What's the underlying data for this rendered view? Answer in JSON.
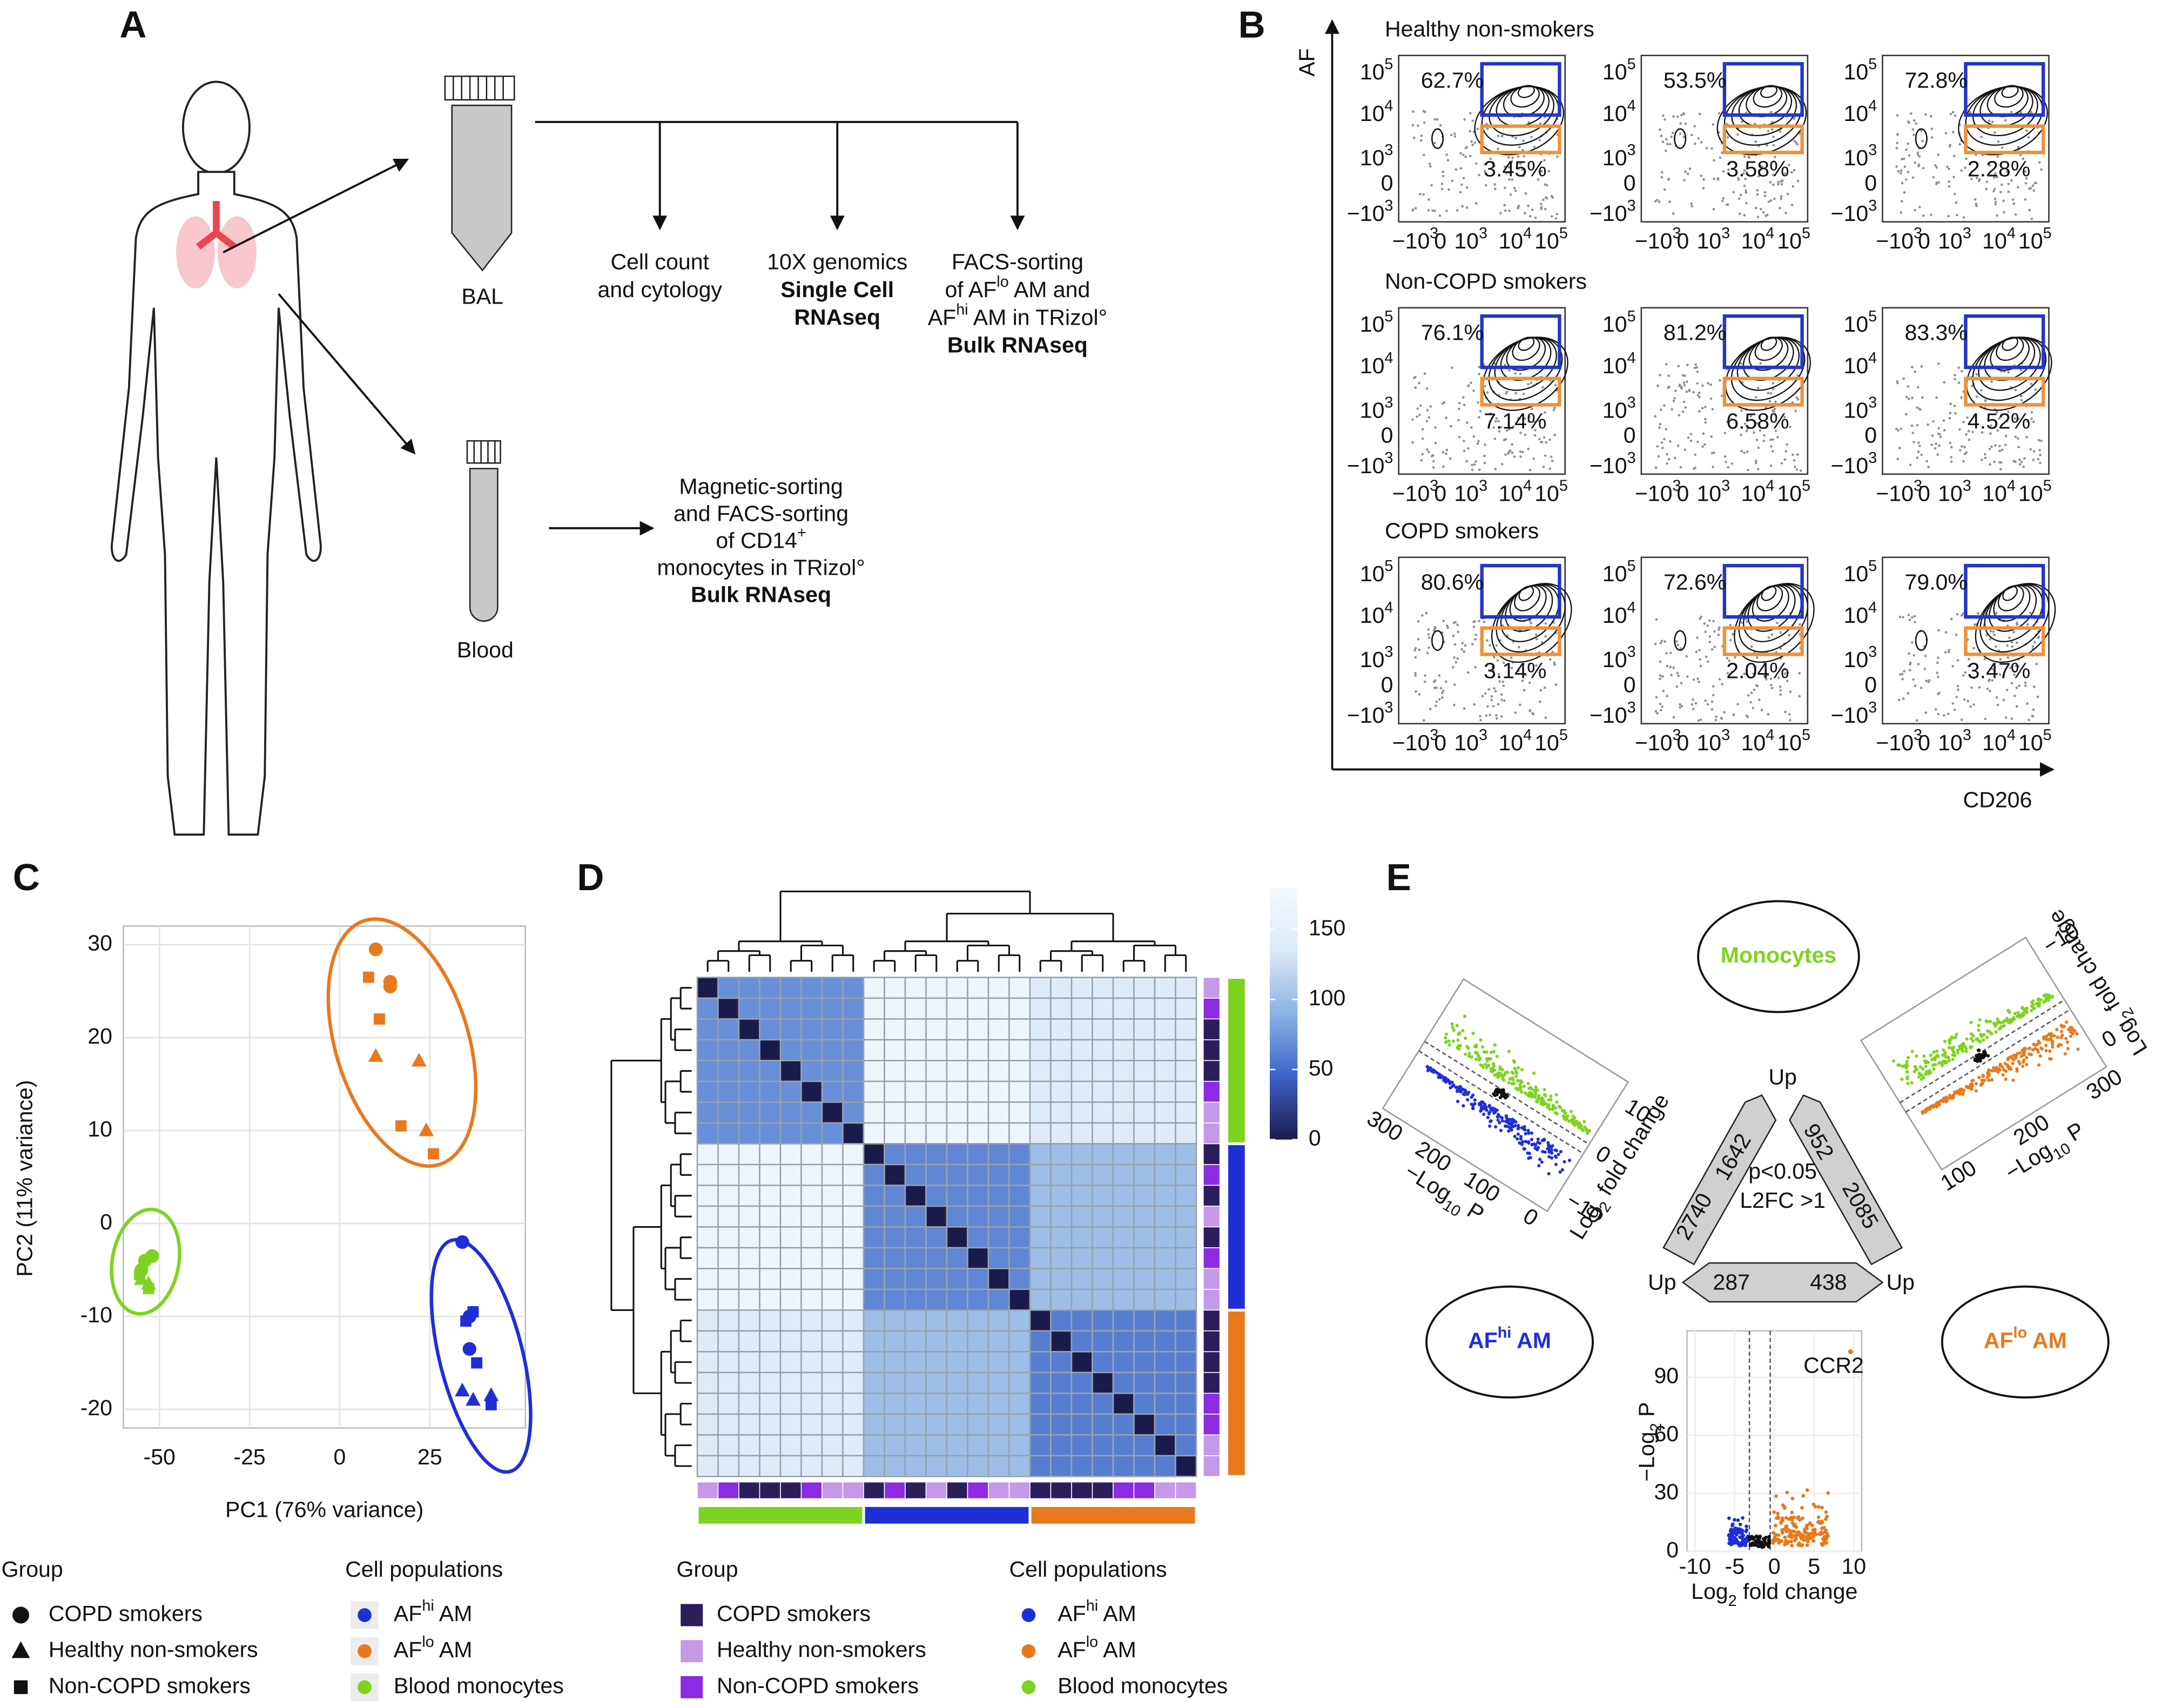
{
  "panel_a": {
    "label": "A",
    "bal": "BAL",
    "blood": "Blood",
    "cell_count": [
      "Cell count",
      "and cytology"
    ],
    "single_cell": [
      "10X genomics",
      "Single Cell",
      "RNAseq"
    ],
    "facs_bal": [
      "FACS-sorting",
      {
        "text": "of AF",
        "sup": "lo",
        "rest": " AM and"
      },
      {
        "text": "AF",
        "sup": "hi",
        "rest": " AM in TRizol°"
      },
      "Bulk RNAseq"
    ],
    "facs_blood": [
      "Magnetic-sorting",
      "and FACS-sorting",
      {
        "text": "of CD14",
        "sup": "+"
      },
      "monocytes in TRizol°",
      "Bulk RNAseq"
    ]
  },
  "panel_b": {
    "label": "B",
    "y_axis": "AF",
    "x_axis": "CD206",
    "ticks": [
      {
        "base": "−10",
        "exp": "3"
      },
      {
        "base": "0"
      },
      {
        "base": "10",
        "exp": "3"
      },
      {
        "base": "10",
        "exp": "4"
      },
      {
        "base": "10",
        "exp": "5"
      }
    ],
    "rows": [
      {
        "title": "Healthy non-smokers",
        "plots": [
          {
            "upper": "62.7%",
            "lower": "3.45%"
          },
          {
            "upper": "53.5%",
            "lower": "3.58%"
          },
          {
            "upper": "72.8%",
            "lower": "2.28%"
          }
        ]
      },
      {
        "title": "Non-COPD smokers",
        "plots": [
          {
            "upper": "76.1%",
            "lower": "7.14%"
          },
          {
            "upper": "81.2%",
            "lower": "6.58%"
          },
          {
            "upper": "83.3%",
            "lower": "4.52%"
          }
        ]
      },
      {
        "title": "COPD smokers",
        "plots": [
          {
            "upper": "80.6%",
            "lower": "3.14%"
          },
          {
            "upper": "72.6%",
            "lower": "2.04%"
          },
          {
            "upper": "79.0%",
            "lower": "3.47%"
          }
        ]
      }
    ]
  },
  "panel_c": {
    "label": "C",
    "type": "scatter",
    "x_label": "PC1 (76% variance)",
    "y_label": "PC2 (11% variance)",
    "xlim": [
      -60,
      51.5
    ],
    "ylim": [
      -22,
      32
    ],
    "xticks": [
      -50,
      -25,
      0,
      25
    ],
    "yticks": [
      -20,
      -10,
      0,
      10,
      20,
      30
    ],
    "grid": true,
    "series": [
      {
        "color": "#1f2fd6",
        "groups": [
          {
            "x": [
              34,
              36,
              36
            ],
            "y": [
              -2,
              -10,
              -13.5
            ]
          },
          {
            "x": [
              34,
              37,
              42
            ],
            "y": [
              -18,
              -19,
              -18.5
            ]
          },
          {
            "x": [
              37,
              35,
              38,
              42
            ],
            "y": [
              -9.5,
              -10.5,
              -15,
              -19.5
            ]
          }
        ]
      },
      {
        "color": "#e8791c",
        "groups": [
          {
            "x": [
              10,
              14,
              14
            ],
            "y": [
              29.5,
              26,
              25.5
            ]
          },
          {
            "x": [
              10,
              22,
              24
            ],
            "y": [
              18,
              17.5,
              10
            ]
          },
          {
            "x": [
              8,
              11,
              17,
              26
            ],
            "y": [
              26.5,
              22,
              10.5,
              7.5
            ]
          }
        ]
      },
      {
        "color": "#7ed321",
        "groups": [
          {
            "x": [
              -54,
              -52,
              -55
            ],
            "y": [
              -4,
              -3.5,
              -5
            ]
          },
          {
            "x": [
              -55,
              -53
            ],
            "y": [
              -6,
              -6.5
            ]
          },
          {
            "x": [
              -55.5,
              -53
            ],
            "y": [
              -5.5,
              -7
            ]
          }
        ]
      }
    ]
  },
  "legends": {
    "group_title": "Group",
    "population_title": "Cell populations",
    "groups": [
      {
        "name": "COPD smokers",
        "shape": "circle",
        "color": "#2b1e5a"
      },
      {
        "name": "Healthy non-smokers",
        "shape": "triangle",
        "color": "#c49ae8"
      },
      {
        "name": "Non-COPD smokers",
        "shape": "square",
        "color": "#8b2be2"
      }
    ],
    "populations": [
      {
        "text": "AF",
        "sup": "hi",
        "rest": " AM",
        "color": "#1f2fd6"
      },
      {
        "text": "AF",
        "sup": "lo",
        "rest": " AM",
        "color": "#e8791c"
      },
      {
        "text": "Blood monocytes",
        "color": "#7ed321"
      }
    ]
  },
  "panel_d": {
    "label": "D",
    "type": "heatmap",
    "block_values": [
      [
        70,
        170,
        140
      ],
      [
        170,
        65,
        100
      ],
      [
        140,
        100,
        60
      ]
    ],
    "diagonal": 0,
    "column_groups": [
      [
        "#c49ae8",
        "#8b2be2",
        "#2b1e5a",
        "#2b1e5a",
        "#2b1e5a",
        "#8b2be2",
        "#c49ae8",
        "#c49ae8"
      ],
      [
        "#2b1e5a",
        "#8b2be2",
        "#2b1e5a",
        "#c49ae8",
        "#2b1e5a",
        "#8b2be2",
        "#c49ae8",
        "#c49ae8"
      ],
      [
        "#2b1e5a",
        "#2b1e5a",
        "#2b1e5a",
        "#2b1e5a",
        "#8b2be2",
        "#8b2be2",
        "#c49ae8",
        "#c49ae8"
      ]
    ],
    "block_colors": [
      "#7ed321",
      "#1f2fd6",
      "#e8791c"
    ],
    "colorbar": {
      "lim": [
        0,
        180
      ],
      "ticks": [
        0,
        50,
        100,
        150
      ],
      "colors": [
        "#1b1b4b",
        "#3d62c8",
        "#8bb3e3",
        "#dce9f6",
        "#f5fafd"
      ]
    }
  },
  "panel_e": {
    "label": "E",
    "monocytes": "Monocytes",
    "af_hi": {
      "text": "AF",
      "sup": "hi",
      "rest": " AM"
    },
    "af_lo": {
      "text": "AF",
      "sup": "lo",
      "rest": " AM"
    },
    "colors": {
      "monocytes": "#7ed321",
      "af_hi": "#1f2fd6",
      "af_lo": "#e8791c"
    },
    "up": "Up",
    "counts": {
      "left_top": "1642",
      "left_bottom": "2740",
      "right_top": "952",
      "right_bottom": "2085",
      "bottom_left": "287",
      "bottom_right": "438"
    },
    "criteria": [
      "p<0.05",
      "L2FC >1"
    ],
    "volcano_left": {
      "x_label": {
        "text": "Log",
        "sub": "2",
        "rest": " fold change"
      },
      "y_label": {
        "text": "−Log",
        "sub": "10",
        "rest": " P"
      },
      "xticks": [
        "10",
        "0",
        "−10"
      ],
      "yticks": [
        "300",
        "200",
        "100",
        "0"
      ]
    },
    "volcano_right": {
      "x_label": {
        "text": "Log",
        "sub": "2",
        "rest": " fold change"
      },
      "y_label": {
        "text": "−Log",
        "sub": "10",
        "rest": " P"
      },
      "xticks": [
        "−10",
        "0"
      ],
      "yticks": [
        "100",
        "200",
        "300"
      ]
    },
    "volcano_bottom": {
      "x_label": {
        "text": "Log",
        "sub": "2",
        "rest": " fold change"
      },
      "y_label": {
        "text": "−Log",
        "sub": "2",
        "rest": " P"
      },
      "gene": "CCR2",
      "xlim": [
        -11,
        11
      ],
      "ylim": [
        0,
        114
      ],
      "xticks": [
        -10,
        -5,
        0,
        5,
        10
      ],
      "yticks": [
        0,
        30,
        60,
        90
      ]
    }
  }
}
